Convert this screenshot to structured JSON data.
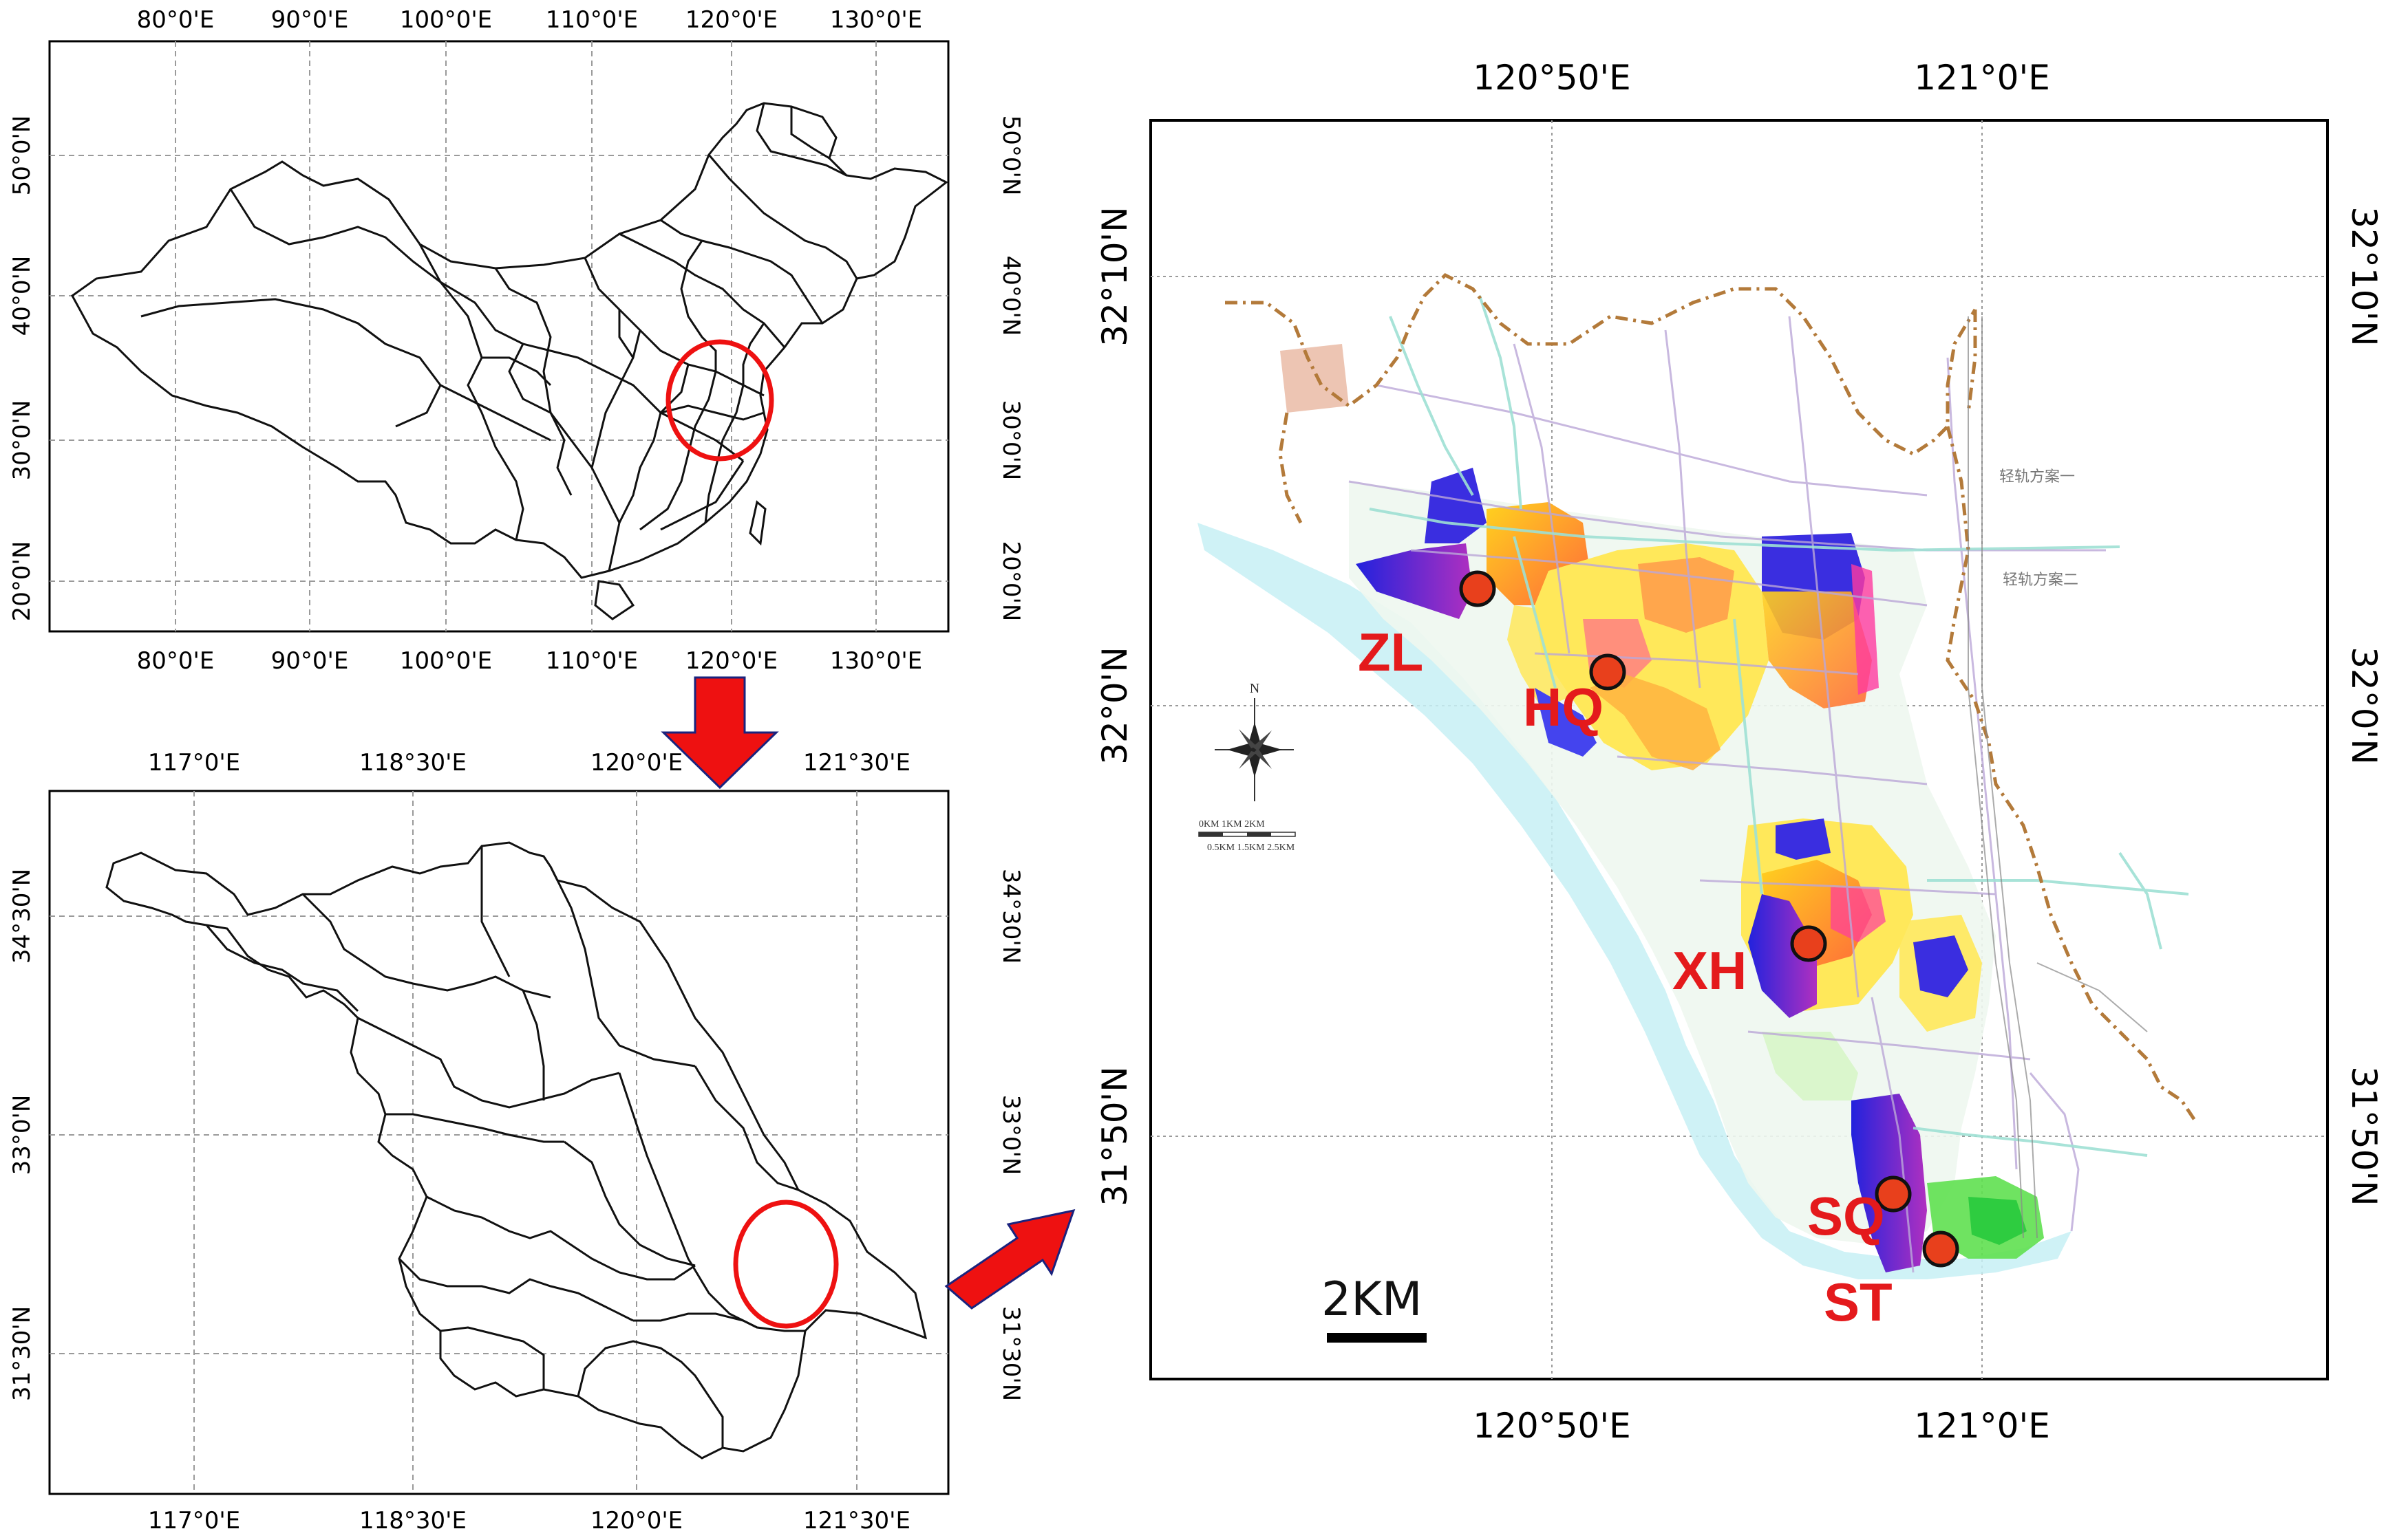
{
  "panel_china": {
    "lon_labels": [
      "80°0'E",
      "90°0'E",
      "100°0'E",
      "110°0'E",
      "120°0'E",
      "130°0'E"
    ],
    "lat_labels": [
      "50°0'N",
      "40°0'N",
      "30°0'N",
      "20°0'N"
    ]
  },
  "panel_jiangsu": {
    "lon_labels": [
      "117°0'E",
      "118°30'E",
      "120°0'E",
      "121°30'E"
    ],
    "lat_labels": [
      "34°30'N",
      "33°0'N",
      "31°30'N"
    ]
  },
  "panel_detail": {
    "lon_labels": [
      "120°50'E",
      "121°0'E"
    ],
    "lat_labels": [
      "32°10'N",
      "32°0'N",
      "31°50'N"
    ],
    "scale_label": "2KM",
    "compass_label": "N",
    "sites": [
      {
        "code": "ZL"
      },
      {
        "code": "HQ"
      },
      {
        "code": "XH"
      },
      {
        "code": "SQ"
      },
      {
        "code": "ST"
      }
    ],
    "small_texts": {
      "rail_option_1": "轻轨方案一",
      "rail_option_2": "轻轨方案二",
      "mini_scale_top": "0KM   1KM   2KM",
      "mini_scale_bottom": "0.5KM  1.5KM  2.5KM"
    }
  },
  "colors": {
    "highlight": "#ee1111",
    "site_fill": "#e8401c",
    "frame": "#000000",
    "grid": "#9a9a9a"
  }
}
